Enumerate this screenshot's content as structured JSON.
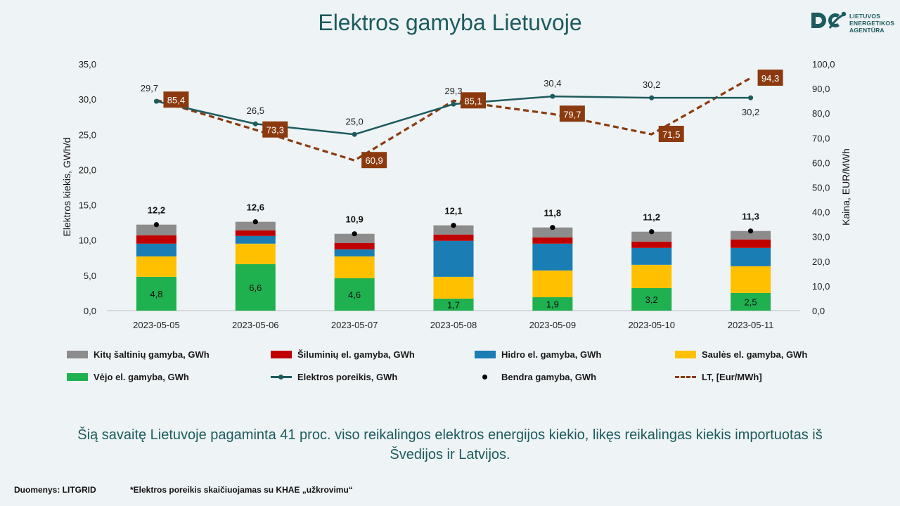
{
  "title": "Elektros gamyba Lietuvoje",
  "logo": {
    "line1": "LIETUVOS",
    "line2": "ENERGETIKOS",
    "line3": "AGENTŪRA",
    "color": "#1c5b5e"
  },
  "caption_line1": "Šią savaitę Lietuvoje pagaminta 41 proc. viso reikalingos elektros energijos kiekio, likęs reikalingas kiekis importuotas iš",
  "caption_line2": "Švedijos ir Latvijos.",
  "footer": {
    "source": "Duomenys: LITGRID",
    "note": "*Elektros poreikis skaičiuojamas su KHAE „užkrovimu“"
  },
  "chart_data": {
    "type": "bar",
    "stacked": true,
    "categories": [
      "2023-05-05",
      "2023-05-06",
      "2023-05-07",
      "2023-05-08",
      "2023-05-09",
      "2023-05-10",
      "2023-05-11"
    ],
    "ylabel": "Elektros kiekis, GWh/d",
    "y2label": "Kaina, EUR/MWh",
    "ylim": [
      0,
      35
    ],
    "y2lim": [
      0,
      100
    ],
    "yticks": [
      "0,0",
      "5,0",
      "10,0",
      "15,0",
      "20,0",
      "25,0",
      "30,0",
      "35,0"
    ],
    "y2ticks": [
      "0,0",
      "10,0",
      "20,0",
      "30,0",
      "40,0",
      "50,0",
      "60,0",
      "70,0",
      "80,0",
      "90,0",
      "100,0"
    ],
    "series": [
      {
        "name": "Vėjo el. gamyba, GWh",
        "kind": "bar",
        "color": "#1fb04f",
        "values": [
          4.8,
          6.6,
          4.6,
          1.7,
          1.9,
          3.2,
          2.5
        ],
        "labels": [
          "4,8",
          "6,6",
          "4,6",
          "1,7",
          "1,9",
          "3,2",
          "2,5"
        ]
      },
      {
        "name": "Saulės el. gamyba, GWh",
        "kind": "bar",
        "color": "#ffc000",
        "values": [
          2.9,
          2.9,
          3.1,
          3.1,
          3.8,
          3.3,
          3.8
        ]
      },
      {
        "name": "Hidro el. gamyba, GWh",
        "kind": "bar",
        "color": "#1a7db4",
        "values": [
          1.8,
          1.1,
          1.0,
          5.1,
          3.8,
          2.4,
          2.6
        ]
      },
      {
        "name": "Šiluminių el. gamyba, GWh",
        "kind": "bar",
        "color": "#c00000",
        "values": [
          1.2,
          0.8,
          0.9,
          0.9,
          0.9,
          0.9,
          1.2
        ]
      },
      {
        "name": "Kitų šaltinių gamyba, GWh",
        "kind": "bar",
        "color": "#8c8c8c",
        "values": [
          1.5,
          1.2,
          1.3,
          1.3,
          1.4,
          1.4,
          1.2
        ]
      },
      {
        "name": "Bendra gamyba, GWh",
        "kind": "point",
        "color": "#000000",
        "values": [
          12.2,
          12.6,
          10.9,
          12.1,
          11.8,
          11.2,
          11.3
        ],
        "labels": [
          "12,2",
          "12,6",
          "10,9",
          "12,1",
          "11,8",
          "11,2",
          "11,3"
        ]
      },
      {
        "name": "Elektros poreikis, GWh",
        "kind": "line",
        "color": "#1c5b5e",
        "values": [
          29.7,
          26.5,
          25.0,
          29.3,
          30.4,
          30.2,
          30.2
        ],
        "labels": [
          "29,7",
          "26,5",
          "25,0",
          "29,3",
          "30,4",
          "30,2",
          "30,2"
        ]
      },
      {
        "name": "LT, [Eur/MWh]",
        "kind": "dashed-line",
        "axis": "right",
        "color": "#8b3a0f",
        "values": [
          85.4,
          73.3,
          60.9,
          85.1,
          79.7,
          71.5,
          94.3
        ],
        "labels": [
          "85,4",
          "73,3",
          "60,9",
          "85,1",
          "79,7",
          "71,5",
          "94,3"
        ]
      }
    ],
    "legend": [
      {
        "name": "Kitų šaltinių gamyba, GWh",
        "type": "box",
        "color": "#8c8c8c"
      },
      {
        "name": "Šiluminių el. gamyba, GWh",
        "type": "box",
        "color": "#c00000"
      },
      {
        "name": "Hidro el. gamyba, GWh",
        "type": "box",
        "color": "#1a7db4"
      },
      {
        "name": "Saulės el. gamyba, GWh",
        "type": "box",
        "color": "#ffc000"
      },
      {
        "name": "Vėjo el. gamyba, GWh",
        "type": "box",
        "color": "#1fb04f"
      },
      {
        "name": "Elektros poreikis, GWh",
        "type": "line",
        "color": "#1c5b5e"
      },
      {
        "name": "Bendra gamyba, GWh",
        "type": "dot",
        "color": "#000000"
      },
      {
        "name": "LT, [Eur/MWh]",
        "type": "dash",
        "color": "#8b3a0f"
      }
    ],
    "legend_position": "bottom",
    "grid": false
  }
}
